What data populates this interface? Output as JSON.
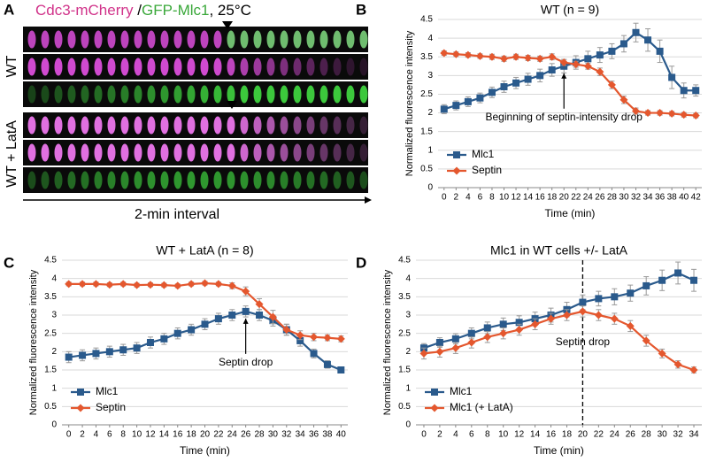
{
  "panel_labels": [
    "A",
    "B",
    "C",
    "D"
  ],
  "image_panel": {
    "title_parts": [
      "Cdc3-mCherry",
      " /",
      "GFP-Mlc1",
      ", 25°C"
    ],
    "row_labels": [
      "WT",
      "WT + LatA"
    ],
    "axis_label": "2-min interval"
  },
  "chart_data": [
    {
      "type": "line",
      "title": "WT (n = 9)",
      "x_label": "Time (min)",
      "y_label": "Normalized fluorescence intensity",
      "x": [
        0,
        2,
        4,
        6,
        8,
        10,
        12,
        14,
        16,
        18,
        20,
        22,
        24,
        26,
        28,
        30,
        32,
        34,
        36,
        38,
        40,
        42
      ],
      "xticks": [
        0,
        2,
        4,
        6,
        8,
        10,
        12,
        14,
        16,
        18,
        20,
        22,
        24,
        26,
        28,
        30,
        32,
        34,
        36,
        38,
        40,
        42
      ],
      "ylim": [
        0,
        4.5
      ],
      "yticks": [
        0,
        0.5,
        1,
        1.5,
        2,
        2.5,
        3,
        3.5,
        4,
        4.5
      ],
      "grid": true,
      "legend": "lower-left",
      "series": [
        {
          "name": "Mlc1",
          "color": "#2a5a8c",
          "marker": "square",
          "values": [
            2.1,
            2.2,
            2.3,
            2.4,
            2.55,
            2.7,
            2.8,
            2.9,
            3.0,
            3.15,
            3.25,
            3.35,
            3.45,
            3.55,
            3.65,
            3.85,
            4.15,
            3.95,
            3.65,
            2.95,
            2.6,
            2.6
          ],
          "errors": [
            0.12,
            0.12,
            0.13,
            0.13,
            0.14,
            0.15,
            0.15,
            0.16,
            0.17,
            0.17,
            0.18,
            0.18,
            0.2,
            0.2,
            0.2,
            0.22,
            0.25,
            0.3,
            0.3,
            0.3,
            0.2,
            0.15
          ]
        },
        {
          "name": "Septin",
          "color": "#e4572e",
          "marker": "diamond",
          "values": [
            3.6,
            3.57,
            3.55,
            3.52,
            3.5,
            3.45,
            3.5,
            3.47,
            3.45,
            3.5,
            3.35,
            3.3,
            3.25,
            3.1,
            2.75,
            2.35,
            2.05,
            2.0,
            2.0,
            1.98,
            1.95,
            1.93
          ],
          "errors": [
            0.06,
            0.06,
            0.06,
            0.06,
            0.07,
            0.07,
            0.07,
            0.07,
            0.07,
            0.08,
            0.08,
            0.08,
            0.08,
            0.1,
            0.1,
            0.1,
            0.08,
            0.06,
            0.06,
            0.06,
            0.06,
            0.06
          ]
        }
      ],
      "annotations": [
        {
          "text": "Beginning of septin-intensity drop",
          "x": 20,
          "style": "arrow"
        }
      ]
    },
    {
      "type": "line",
      "title": "WT + LatA (n = 8)",
      "x_label": "Time (min)",
      "y_label": "Normalized fluorescence intensity",
      "x": [
        0,
        2,
        4,
        6,
        8,
        10,
        12,
        14,
        16,
        18,
        20,
        22,
        24,
        26,
        28,
        30,
        32,
        34,
        36,
        38,
        40
      ],
      "xticks": [
        0,
        2,
        4,
        6,
        8,
        10,
        12,
        14,
        16,
        18,
        20,
        22,
        24,
        26,
        28,
        30,
        32,
        34,
        36,
        38,
        40
      ],
      "ylim": [
        0,
        4.5
      ],
      "yticks": [
        0,
        0.5,
        1,
        1.5,
        2,
        2.5,
        3,
        3.5,
        4,
        4.5
      ],
      "grid": true,
      "legend": "lower-left",
      "series": [
        {
          "name": "Mlc1",
          "color": "#2a5a8c",
          "marker": "square",
          "values": [
            1.85,
            1.9,
            1.95,
            2.0,
            2.05,
            2.1,
            2.25,
            2.35,
            2.5,
            2.6,
            2.75,
            2.9,
            3.0,
            3.1,
            3.0,
            2.85,
            2.6,
            2.3,
            1.95,
            1.65,
            1.5
          ],
          "errors": [
            0.15,
            0.15,
            0.15,
            0.15,
            0.15,
            0.15,
            0.15,
            0.15,
            0.15,
            0.15,
            0.15,
            0.15,
            0.15,
            0.15,
            0.15,
            0.15,
            0.15,
            0.15,
            0.12,
            0.1,
            0.08
          ]
        },
        {
          "name": "Septin",
          "color": "#e4572e",
          "marker": "diamond",
          "values": [
            3.85,
            3.85,
            3.85,
            3.83,
            3.85,
            3.82,
            3.83,
            3.82,
            3.8,
            3.85,
            3.87,
            3.85,
            3.8,
            3.65,
            3.3,
            2.95,
            2.6,
            2.45,
            2.4,
            2.38,
            2.35
          ],
          "errors": [
            0.05,
            0.05,
            0.05,
            0.05,
            0.05,
            0.05,
            0.05,
            0.05,
            0.05,
            0.05,
            0.05,
            0.05,
            0.08,
            0.12,
            0.15,
            0.18,
            0.15,
            0.12,
            0.1,
            0.08,
            0.08
          ]
        }
      ],
      "annotations": [
        {
          "text": "Septin drop",
          "x": 26,
          "style": "arrow"
        }
      ]
    },
    {
      "type": "line",
      "title": "Mlc1 in WT cells +/- LatA",
      "x_label": "Time (min)",
      "y_label": "Normalized fluorescence intensity",
      "x": [
        0,
        2,
        4,
        6,
        8,
        10,
        12,
        14,
        16,
        18,
        20,
        22,
        24,
        26,
        28,
        30,
        32,
        34
      ],
      "xticks": [
        0,
        2,
        4,
        6,
        8,
        10,
        12,
        14,
        16,
        18,
        20,
        22,
        24,
        26,
        28,
        30,
        32,
        34
      ],
      "ylim": [
        0,
        4.5
      ],
      "yticks": [
        0,
        0.5,
        1,
        1.5,
        2,
        2.5,
        3,
        3.5,
        4,
        4.5
      ],
      "grid": true,
      "legend": "lower-left",
      "series": [
        {
          "name": "Mlc1",
          "color": "#2a5a8c",
          "marker": "square",
          "values": [
            2.1,
            2.25,
            2.35,
            2.5,
            2.65,
            2.75,
            2.8,
            2.9,
            3.0,
            3.15,
            3.35,
            3.45,
            3.5,
            3.6,
            3.8,
            3.95,
            4.15,
            3.95
          ],
          "errors": [
            0.12,
            0.13,
            0.14,
            0.15,
            0.16,
            0.17,
            0.18,
            0.18,
            0.19,
            0.2,
            0.2,
            0.2,
            0.22,
            0.22,
            0.25,
            0.28,
            0.3,
            0.3
          ]
        },
        {
          "name": "Mlc1 (+ LatA)",
          "color": "#e4572e",
          "marker": "diamond",
          "values": [
            1.95,
            2.0,
            2.1,
            2.25,
            2.4,
            2.5,
            2.6,
            2.75,
            2.9,
            3.0,
            3.1,
            3.0,
            2.9,
            2.7,
            2.3,
            1.95,
            1.65,
            1.5
          ],
          "errors": [
            0.15,
            0.15,
            0.15,
            0.15,
            0.15,
            0.15,
            0.15,
            0.15,
            0.15,
            0.15,
            0.15,
            0.15,
            0.15,
            0.15,
            0.15,
            0.12,
            0.1,
            0.08
          ]
        }
      ],
      "annotations": [
        {
          "text": "Septin drop",
          "x": 20,
          "style": "dashed-line"
        }
      ]
    }
  ]
}
